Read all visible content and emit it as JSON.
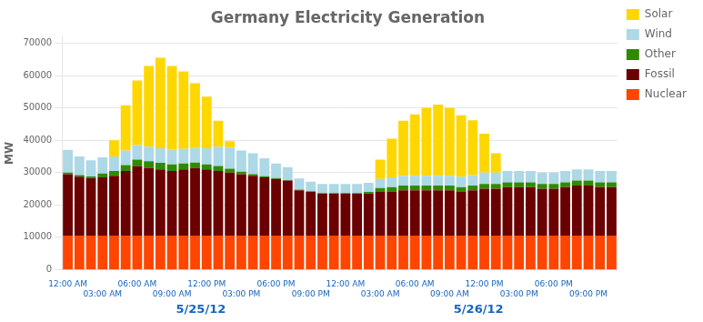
{
  "chart_data": {
    "type": "bar",
    "title": "Germany Electricity Generation",
    "ylabel": "MW",
    "categories": [
      "12:00 AM",
      null,
      null,
      "03:00 AM",
      null,
      null,
      "06:00 AM",
      null,
      null,
      "09:00 AM",
      null,
      null,
      "12:00 PM",
      null,
      null,
      "03:00 PM",
      null,
      null,
      "06:00 PM",
      null,
      null,
      "09:00 PM",
      null,
      null,
      "12:00 AM",
      null,
      null,
      "03:00 AM",
      null,
      null,
      "06:00 AM",
      null,
      null,
      "09:00 AM",
      null,
      null,
      "12:00 PM",
      null,
      null,
      "03:00 PM",
      null,
      null,
      "06:00 PM",
      null,
      null,
      "09:00 PM",
      null,
      null
    ],
    "series": [
      {
        "name": "Nuclear",
        "color": "#FF4500",
        "values": [
          10500,
          10500,
          10500,
          10500,
          10500,
          10500,
          10500,
          10500,
          10500,
          10500,
          10500,
          10500,
          10500,
          10500,
          10500,
          10500,
          10500,
          10500,
          10500,
          10500,
          10500,
          10500,
          10500,
          10500,
          10500,
          10500,
          10500,
          10500,
          10500,
          10500,
          10500,
          10500,
          10500,
          10500,
          10500,
          10500,
          10500,
          10500,
          10500,
          10500,
          10500,
          10500,
          10500,
          10500,
          10500,
          10500,
          10500,
          10500
        ]
      },
      {
        "name": "Fossil",
        "color": "#6B0000",
        "values": [
          19000,
          18200,
          17800,
          18000,
          18500,
          20000,
          21500,
          21000,
          20500,
          20000,
          20500,
          21000,
          20500,
          20000,
          19500,
          19000,
          18500,
          18000,
          17500,
          17000,
          14000,
          13500,
          13000,
          13000,
          13000,
          13000,
          13000,
          13500,
          13500,
          14000,
          14000,
          14000,
          14000,
          14000,
          13500,
          14000,
          14500,
          14500,
          15000,
          15000,
          15000,
          14500,
          14500,
          15000,
          15500,
          15500,
          15000,
          15000
        ]
      },
      {
        "name": "Other",
        "color": "#2E8B00",
        "values": [
          500,
          500,
          500,
          1200,
          1500,
          1800,
          2000,
          2000,
          2000,
          2000,
          1800,
          1600,
          1500,
          1500,
          1200,
          800,
          500,
          400,
          300,
          200,
          200,
          200,
          200,
          200,
          200,
          200,
          500,
          1200,
          1500,
          1500,
          1500,
          1500,
          1500,
          1500,
          1500,
          1500,
          1500,
          1500,
          1500,
          1500,
          1500,
          1500,
          1500,
          1500,
          1500,
          1500,
          1500,
          1500
        ]
      },
      {
        "name": "Wind",
        "color": "#ADD8E6",
        "values": [
          7000,
          5800,
          5000,
          5000,
          4500,
          4500,
          4500,
          4500,
          4500,
          4500,
          4500,
          4500,
          5000,
          6000,
          6500,
          6500,
          6500,
          5500,
          4500,
          4000,
          3500,
          3000,
          2800,
          2800,
          2800,
          2800,
          2800,
          2800,
          3000,
          3000,
          3000,
          3000,
          3000,
          3000,
          3200,
          3200,
          3500,
          3500,
          3500,
          3500,
          3500,
          3500,
          3500,
          3500,
          3500,
          3500,
          3500,
          3500
        ]
      },
      {
        "name": "Solar",
        "color": "#FFD700",
        "values": [
          0,
          0,
          0,
          0,
          5000,
          14000,
          20000,
          25000,
          28000,
          26000,
          24000,
          20000,
          16000,
          8000,
          2000,
          0,
          0,
          0,
          0,
          0,
          0,
          0,
          0,
          0,
          0,
          0,
          0,
          6000,
          12000,
          17000,
          19000,
          21000,
          22000,
          21000,
          19000,
          17000,
          12000,
          6000,
          0,
          0,
          0,
          0,
          0,
          0,
          0,
          0,
          0,
          0
        ]
      }
    ],
    "stacked": true,
    "ylim": [
      0,
      72000
    ],
    "yticks": [
      0,
      10000,
      20000,
      30000,
      40000,
      50000,
      60000,
      70000
    ],
    "grid": true,
    "legend": "right",
    "annotations": [
      "5/25/12",
      "5/26/12"
    ]
  }
}
